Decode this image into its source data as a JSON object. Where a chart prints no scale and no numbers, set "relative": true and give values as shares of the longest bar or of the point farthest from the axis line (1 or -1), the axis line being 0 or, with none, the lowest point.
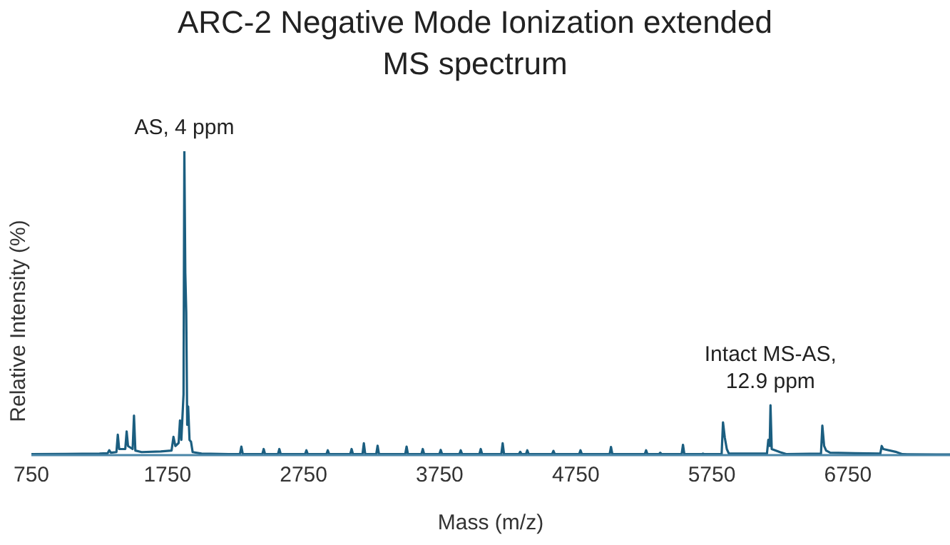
{
  "chart_data": {
    "type": "line",
    "title": "ARC-2 Negative Mode Ionization extended MS spectrum",
    "xlabel": "Mass (m/z)",
    "ylabel": "Relative Intensity (%)",
    "relative": true,
    "xlim": [
      750,
      7500
    ],
    "xticks": [
      750,
      1750,
      2750,
      3750,
      4750,
      5750,
      6750
    ],
    "grid": false,
    "legend": false,
    "annotations": [
      {
        "text": "AS, 4 ppm",
        "x": 1874,
        "y": 1
      },
      {
        "text": "Intact MS-AS, 12.9 ppm",
        "x": 6181,
        "y": 0.164
      }
    ],
    "series": [
      {
        "color": "#1b5e80",
        "x": [
          750,
          1000,
          1250,
          1310,
          1322,
          1334,
          1375,
          1385,
          1395,
          1440,
          1450,
          1460,
          1494,
          1504,
          1514,
          1560,
          1700,
          1780,
          1794,
          1808,
          1832,
          1842,
          1852,
          1868,
          1874,
          1881,
          1888,
          1895,
          1902,
          1912,
          1923,
          1935,
          2000,
          2200,
          2283,
          2293,
          2303,
          2447,
          2457,
          2467,
          2562,
          2572,
          2582,
          2761,
          2771,
          2781,
          2918,
          2928,
          2938,
          3093,
          3103,
          3113,
          3183,
          3193,
          3203,
          3284,
          3294,
          3304,
          3497,
          3507,
          3517,
          3616,
          3626,
          3636,
          3748,
          3758,
          3768,
          3895,
          3905,
          3915,
          4042,
          4052,
          4062,
          4203,
          4213,
          4223,
          4332,
          4342,
          4352,
          4384,
          4394,
          4404,
          4576,
          4586,
          4596,
          4775,
          4785,
          4795,
          4999,
          5009,
          5019,
          5257,
          5267,
          5277,
          5361,
          5371,
          5381,
          5528,
          5538,
          5548,
          5675,
          5685,
          5695,
          5822,
          5832,
          5845,
          5860,
          5875,
          6155,
          6165,
          6175,
          6181,
          6190,
          6250,
          6300,
          6552,
          6562,
          6575,
          6590,
          6620,
          6800,
          6988,
          6998,
          7010,
          7100,
          7150,
          7400,
          7500
        ],
        "values": [
          0.003,
          0.004,
          0.005,
          0.006,
          0.016,
          0.008,
          0.01,
          0.067,
          0.02,
          0.02,
          0.078,
          0.03,
          0.02,
          0.13,
          0.015,
          0.01,
          0.012,
          0.015,
          0.06,
          0.03,
          0.04,
          0.114,
          0.05,
          0.2,
          1,
          0.6,
          0.47,
          0.1,
          0.16,
          0.05,
          0.044,
          0.01,
          0.005,
          0.003,
          0.004,
          0.028,
          0.004,
          0.003,
          0.02,
          0.003,
          0.003,
          0.02,
          0.003,
          0.003,
          0.016,
          0.003,
          0.003,
          0.016,
          0.003,
          0.003,
          0.02,
          0.003,
          0.003,
          0.039,
          0.003,
          0.003,
          0.031,
          0.003,
          0.003,
          0.028,
          0.003,
          0.003,
          0.02,
          0.003,
          0.003,
          0.017,
          0.003,
          0.003,
          0.016,
          0.003,
          0.003,
          0.02,
          0.003,
          0.003,
          0.039,
          0.003,
          0.003,
          0.011,
          0.003,
          0.003,
          0.016,
          0.003,
          0.003,
          0.014,
          0.003,
          0.003,
          0.016,
          0.003,
          0.003,
          0.027,
          0.003,
          0.003,
          0.016,
          0.003,
          0.003,
          0.008,
          0.003,
          0.003,
          0.034,
          0.003,
          0.003,
          0.005,
          0.003,
          0.003,
          0.108,
          0.058,
          0.02,
          0.005,
          0.005,
          0.05,
          0.03,
          0.164,
          0.02,
          0.01,
          0.003,
          0.005,
          0.097,
          0.03,
          0.015,
          0.008,
          0.006,
          0.005,
          0.03,
          0.02,
          0.011,
          0.003,
          0.002,
          0.002
        ]
      }
    ]
  }
}
